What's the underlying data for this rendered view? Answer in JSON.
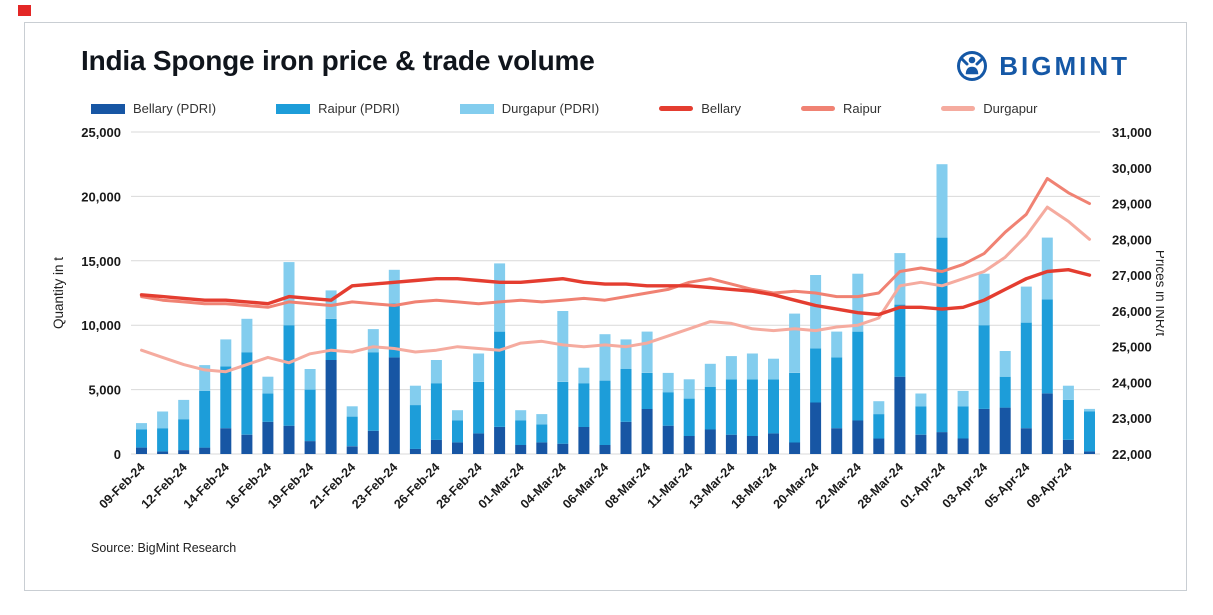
{
  "page": {
    "title": "India Sponge iron price & trade volume",
    "brand_name": "BIGMINT",
    "source": "Source: BigMint Research"
  },
  "colors": {
    "brand_blue": "#1558a6",
    "bellary_pdri": "#1756a4",
    "raipur_pdri": "#1d9dd9",
    "durgapur_pdri": "#83cdee",
    "bellary_line": "#e43d30",
    "raipur_line": "#f08273",
    "durgapur_line": "#f5ab9f",
    "grid": "#d9d9d9"
  },
  "legend": [
    {
      "label": "Bellary (PDRI)",
      "color": "#1756a4",
      "type": "bar"
    },
    {
      "label": "Raipur (PDRI)",
      "color": "#1d9dd9",
      "type": "bar"
    },
    {
      "label": "Durgapur (PDRI)",
      "color": "#83cdee",
      "type": "bar"
    },
    {
      "label": "Bellary",
      "color": "#e43d30",
      "type": "line"
    },
    {
      "label": "Raipur",
      "color": "#f08273",
      "type": "line"
    },
    {
      "label": "Durgapur",
      "color": "#f5ab9f",
      "type": "line"
    }
  ],
  "chart_data": {
    "type": "combo",
    "bar_type": "stacked",
    "grid": true,
    "left_axis": {
      "title": "Quantity in t",
      "min": 0,
      "max": 25000,
      "step": 5000
    },
    "right_axis": {
      "title": "Prices in INR/t",
      "min": 22000,
      "max": 31000,
      "step": 1000
    },
    "x_labels": [
      "09-Feb-24",
      "",
      "12-Feb-24",
      "",
      "14-Feb-24",
      "",
      "16-Feb-24",
      "",
      "19-Feb-24",
      "",
      "21-Feb-24",
      "",
      "23-Feb-24",
      "",
      "26-Feb-24",
      "",
      "28-Feb-24",
      "",
      "01-Mar-24",
      "",
      "04-Mar-24",
      "",
      "06-Mar-24",
      "",
      "08-Mar-24",
      "",
      "11-Mar-24",
      "",
      "13-Mar-24",
      "",
      "18-Mar-24",
      "",
      "20-Mar-24",
      "",
      "22-Mar-24",
      "",
      "28-Mar-24",
      "",
      "01-Apr-24",
      "",
      "03-Apr-24",
      "",
      "05-Apr-24",
      "",
      "09-Apr-24",
      ""
    ],
    "bar_series": [
      {
        "name": "Bellary (PDRI)",
        "color": "#1756a4",
        "values": [
          500,
          200,
          300,
          500,
          2000,
          1500,
          2500,
          2200,
          1000,
          7300,
          600,
          1800,
          7500,
          400,
          1100,
          900,
          1600,
          2100,
          700,
          900,
          800,
          2100,
          700,
          2500,
          3500,
          2200,
          1400,
          1900,
          1500,
          1400,
          1600,
          900,
          4000,
          2000,
          2600,
          1200,
          6000,
          1500,
          1700,
          1200,
          3500,
          3600,
          2000,
          4700,
          1100,
          200
        ]
      },
      {
        "name": "Raipur (PDRI)",
        "color": "#1d9dd9",
        "values": [
          1400,
          1800,
          2400,
          4400,
          4800,
          6400,
          2200,
          7800,
          4000,
          3200,
          2300,
          6100,
          4200,
          3400,
          4400,
          1700,
          4000,
          7400,
          1900,
          1400,
          4800,
          3400,
          5000,
          4100,
          2800,
          2600,
          2900,
          3300,
          4300,
          4400,
          4200,
          5400,
          4200,
          5500,
          6900,
          1900,
          5600,
          2200,
          15100,
          2500,
          6500,
          2400,
          8200,
          7300,
          3100,
          3100
        ]
      },
      {
        "name": "Durgapur (PDRI)",
        "color": "#83cdee",
        "values": [
          500,
          1300,
          1500,
          2000,
          2100,
          2600,
          1300,
          4900,
          1600,
          2200,
          800,
          1800,
          2600,
          1500,
          1800,
          800,
          2200,
          5300,
          800,
          800,
          5500,
          1200,
          3600,
          2300,
          3200,
          1500,
          1500,
          1800,
          1800,
          2000,
          1600,
          4600,
          5700,
          2000,
          4500,
          1000,
          4000,
          1000,
          5700,
          1200,
          4000,
          2000,
          2800,
          4800,
          1100,
          200
        ]
      }
    ],
    "line_series": [
      {
        "name": "Bellary",
        "color": "#e43d30",
        "values": [
          26450,
          26400,
          26350,
          26300,
          26300,
          26250,
          26200,
          26400,
          26350,
          26300,
          26700,
          26750,
          26800,
          26850,
          26900,
          26900,
          26850,
          26800,
          26800,
          26850,
          26900,
          26800,
          26750,
          26750,
          26700,
          26700,
          26700,
          26650,
          26600,
          26550,
          26450,
          26300,
          26150,
          26050,
          25950,
          25900,
          26100,
          26100,
          26050,
          26100,
          26300,
          26600,
          26900,
          27100,
          27150,
          27000
        ]
      },
      {
        "name": "Raipur",
        "color": "#f08273",
        "values": [
          26400,
          26300,
          26250,
          26200,
          26200,
          26150,
          26100,
          26250,
          26200,
          26150,
          26250,
          26200,
          26150,
          26250,
          26300,
          26250,
          26200,
          26250,
          26300,
          26250,
          26300,
          26350,
          26300,
          26400,
          26500,
          26600,
          26800,
          26900,
          26750,
          26600,
          26500,
          26550,
          26500,
          26400,
          26400,
          26500,
          27100,
          27200,
          27100,
          27300,
          27600,
          28200,
          28700,
          29700,
          29300,
          29000
        ]
      },
      {
        "name": "Durgapur",
        "color": "#f5ab9f",
        "values": [
          24900,
          24700,
          24500,
          24350,
          24300,
          24500,
          24700,
          24550,
          24800,
          24900,
          24850,
          25000,
          24950,
          24850,
          24900,
          25000,
          24950,
          24900,
          25100,
          25150,
          25050,
          25000,
          25050,
          25000,
          25100,
          25300,
          25500,
          25700,
          25650,
          25500,
          25450,
          25500,
          25450,
          25550,
          25600,
          25800,
          26700,
          26800,
          26700,
          26900,
          27100,
          27500,
          28100,
          28900,
          28500,
          28000
        ]
      }
    ]
  }
}
